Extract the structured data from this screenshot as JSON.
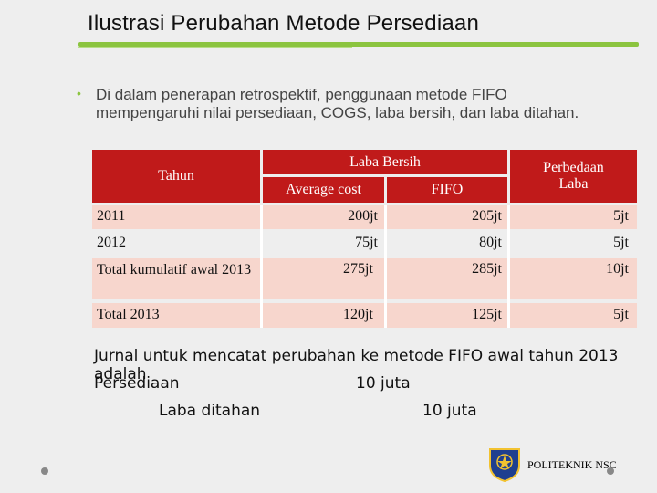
{
  "slide": {
    "title": "Ilustrasi Perubahan Metode Persediaan",
    "bullet": "Di dalam penerapan retrospektif, penggunaan metode FIFO mempengaruhi nilai persediaan, COGS, laba bersih,  dan laba ditahan."
  },
  "table": {
    "header": {
      "tahun": "Tahun",
      "laba_bersih": "Laba Bersih",
      "average_cost": "Average cost",
      "fifo": "FIFO",
      "perbedaan_laba": "Perbedaan Laba"
    },
    "rows": [
      {
        "tahun": "2011",
        "average_cost": "200jt",
        "fifo": "205jt",
        "perbedaan": "5jt"
      },
      {
        "tahun": "2012",
        "average_cost": "75jt",
        "fifo": "80jt",
        "perbedaan": "5jt"
      },
      {
        "tahun": "Total kumulatif awal 2013",
        "average_cost": "275jt",
        "fifo": "285jt",
        "perbedaan": "10jt"
      },
      {
        "tahun": "Total 2013",
        "average_cost": "120jt",
        "fifo": "125jt",
        "perbedaan": "5jt"
      }
    ]
  },
  "journal": {
    "intro": "Jurnal untuk mencatat perubahan ke metode FIFO awal tahun 2013 adalah",
    "debit_account": "Persediaan",
    "debit_amount": "10 juta",
    "credit_account": "Laba ditahan",
    "credit_amount": "10 juta"
  },
  "footer": {
    "logo_text": "POLITEKNIK NSC",
    "logo_icon": "politeknik-emblem-icon"
  },
  "colors": {
    "accent_green": "#8bc43f",
    "header_red": "#c01a1a",
    "row_pink": "#f7d6cd"
  }
}
